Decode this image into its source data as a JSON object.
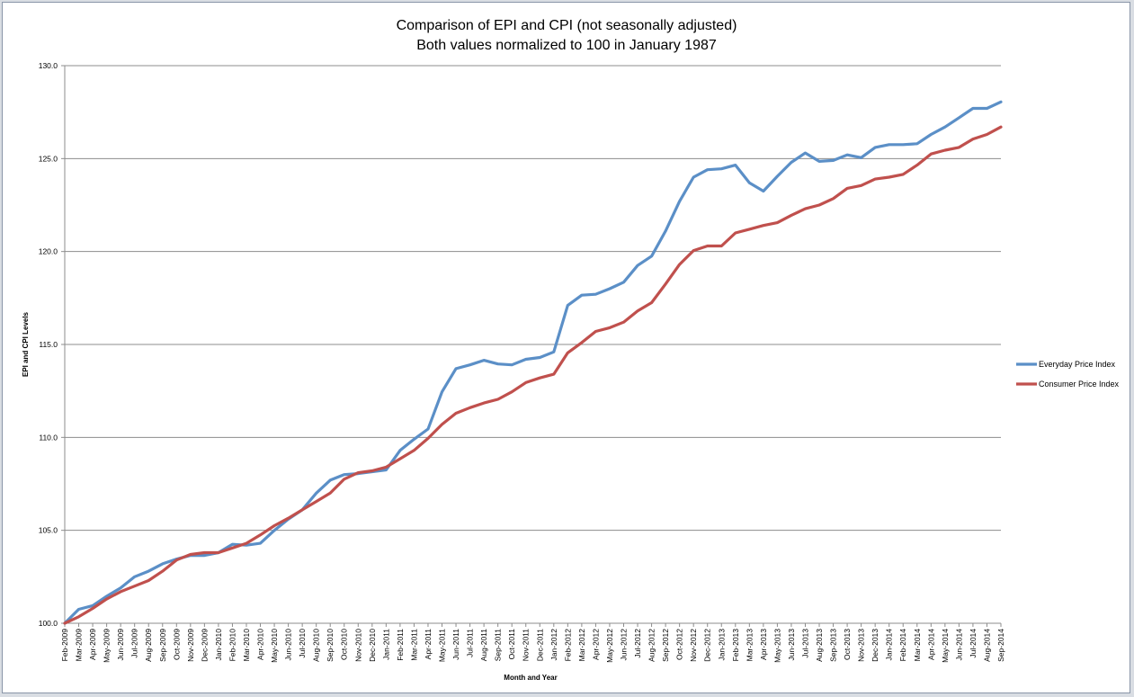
{
  "chart_data": {
    "type": "line",
    "title": "Comparison of EPI and CPI (not seasonally adjusted)",
    "subtitle": "Both values normalized to 100 in January 1987",
    "xlabel": "Month and Year",
    "ylabel": "EPI and CPI Levels",
    "ylim": [
      100,
      130
    ],
    "yticks": [
      "100.0",
      "105.0",
      "110.0",
      "115.0",
      "120.0",
      "125.0",
      "130.0"
    ],
    "grid": true,
    "legend_position": "right",
    "categories": [
      "Feb-2009",
      "Mar-2009",
      "Apr-2009",
      "May-2009",
      "Jun-2009",
      "Jul-2009",
      "Aug-2009",
      "Sep-2009",
      "Oct-2009",
      "Nov-2009",
      "Dec-2009",
      "Jan-2010",
      "Feb-2010",
      "Mar-2010",
      "Apr-2010",
      "May-2010",
      "Jun-2010",
      "Jul-2010",
      "Aug-2010",
      "Sep-2010",
      "Oct-2010",
      "Nov-2010",
      "Dec-2010",
      "Jan-2011",
      "Feb-2011",
      "Mar-2011",
      "Apr-2011",
      "May-2011",
      "Jun-2011",
      "Jul-2011",
      "Aug-2011",
      "Sep-2011",
      "Oct-2011",
      "Nov-2011",
      "Dec-2011",
      "Jan-2012",
      "Feb-2012",
      "Mar-2012",
      "Apr-2012",
      "May-2012",
      "Jun-2012",
      "Jul-2012",
      "Aug-2012",
      "Sep-2012",
      "Oct-2012",
      "Nov-2012",
      "Dec-2012",
      "Jan-2013",
      "Feb-2013",
      "Mar-2013",
      "Apr-2013",
      "May-2013",
      "Jun-2013",
      "Jul-2013",
      "Aug-2013",
      "Sep-2013",
      "Oct-2013",
      "Nov-2013",
      "Dec-2013",
      "Jan-2014",
      "Feb-2014",
      "Mar-2014",
      "Apr-2014",
      "May-2014",
      "Jun-2014",
      "Jul-2014",
      "Aug-2014",
      "Sep-2014"
    ],
    "series": [
      {
        "name": "Everyday Price Index",
        "color": "#5b8fc7",
        "values": [
          100.0,
          100.75,
          100.95,
          101.45,
          101.9,
          102.5,
          102.8,
          103.2,
          103.45,
          103.65,
          103.65,
          103.8,
          104.25,
          104.2,
          104.3,
          105.0,
          105.6,
          106.1,
          107.0,
          107.7,
          108.0,
          108.05,
          108.15,
          108.25,
          109.3,
          109.9,
          110.45,
          112.45,
          113.7,
          113.9,
          114.15,
          113.95,
          113.9,
          114.2,
          114.3,
          114.6,
          117.1,
          117.65,
          117.7,
          118.0,
          118.35,
          119.25,
          119.75,
          121.1,
          122.7,
          124.0,
          124.4,
          124.45,
          124.65,
          123.7,
          123.25,
          124.05,
          124.8,
          125.3,
          124.85,
          124.9,
          125.2,
          125.05,
          125.6,
          125.75,
          125.75,
          125.8,
          126.3,
          126.7,
          127.2,
          127.7,
          127.7,
          128.05
        ]
      },
      {
        "name": "Consumer Price Index",
        "color": "#c0504d",
        "values": [
          100.0,
          100.35,
          100.8,
          101.3,
          101.7,
          102.0,
          102.3,
          102.8,
          103.4,
          103.7,
          103.8,
          103.8,
          104.05,
          104.3,
          104.75,
          105.25,
          105.65,
          106.1,
          106.55,
          107.0,
          107.75,
          108.1,
          108.2,
          108.4,
          108.85,
          109.3,
          109.95,
          110.7,
          111.3,
          111.6,
          111.85,
          112.05,
          112.45,
          112.95,
          113.2,
          113.4,
          114.55,
          115.1,
          115.7,
          115.9,
          116.2,
          116.8,
          117.25,
          118.25,
          119.3,
          120.05,
          120.3,
          120.3,
          121.0,
          121.2,
          121.4,
          121.55,
          121.95,
          122.3,
          122.5,
          122.85,
          123.4,
          123.55,
          123.9,
          124.0,
          124.15,
          124.65,
          125.25,
          125.45,
          125.6,
          126.05,
          126.3,
          126.7
        ]
      }
    ]
  }
}
